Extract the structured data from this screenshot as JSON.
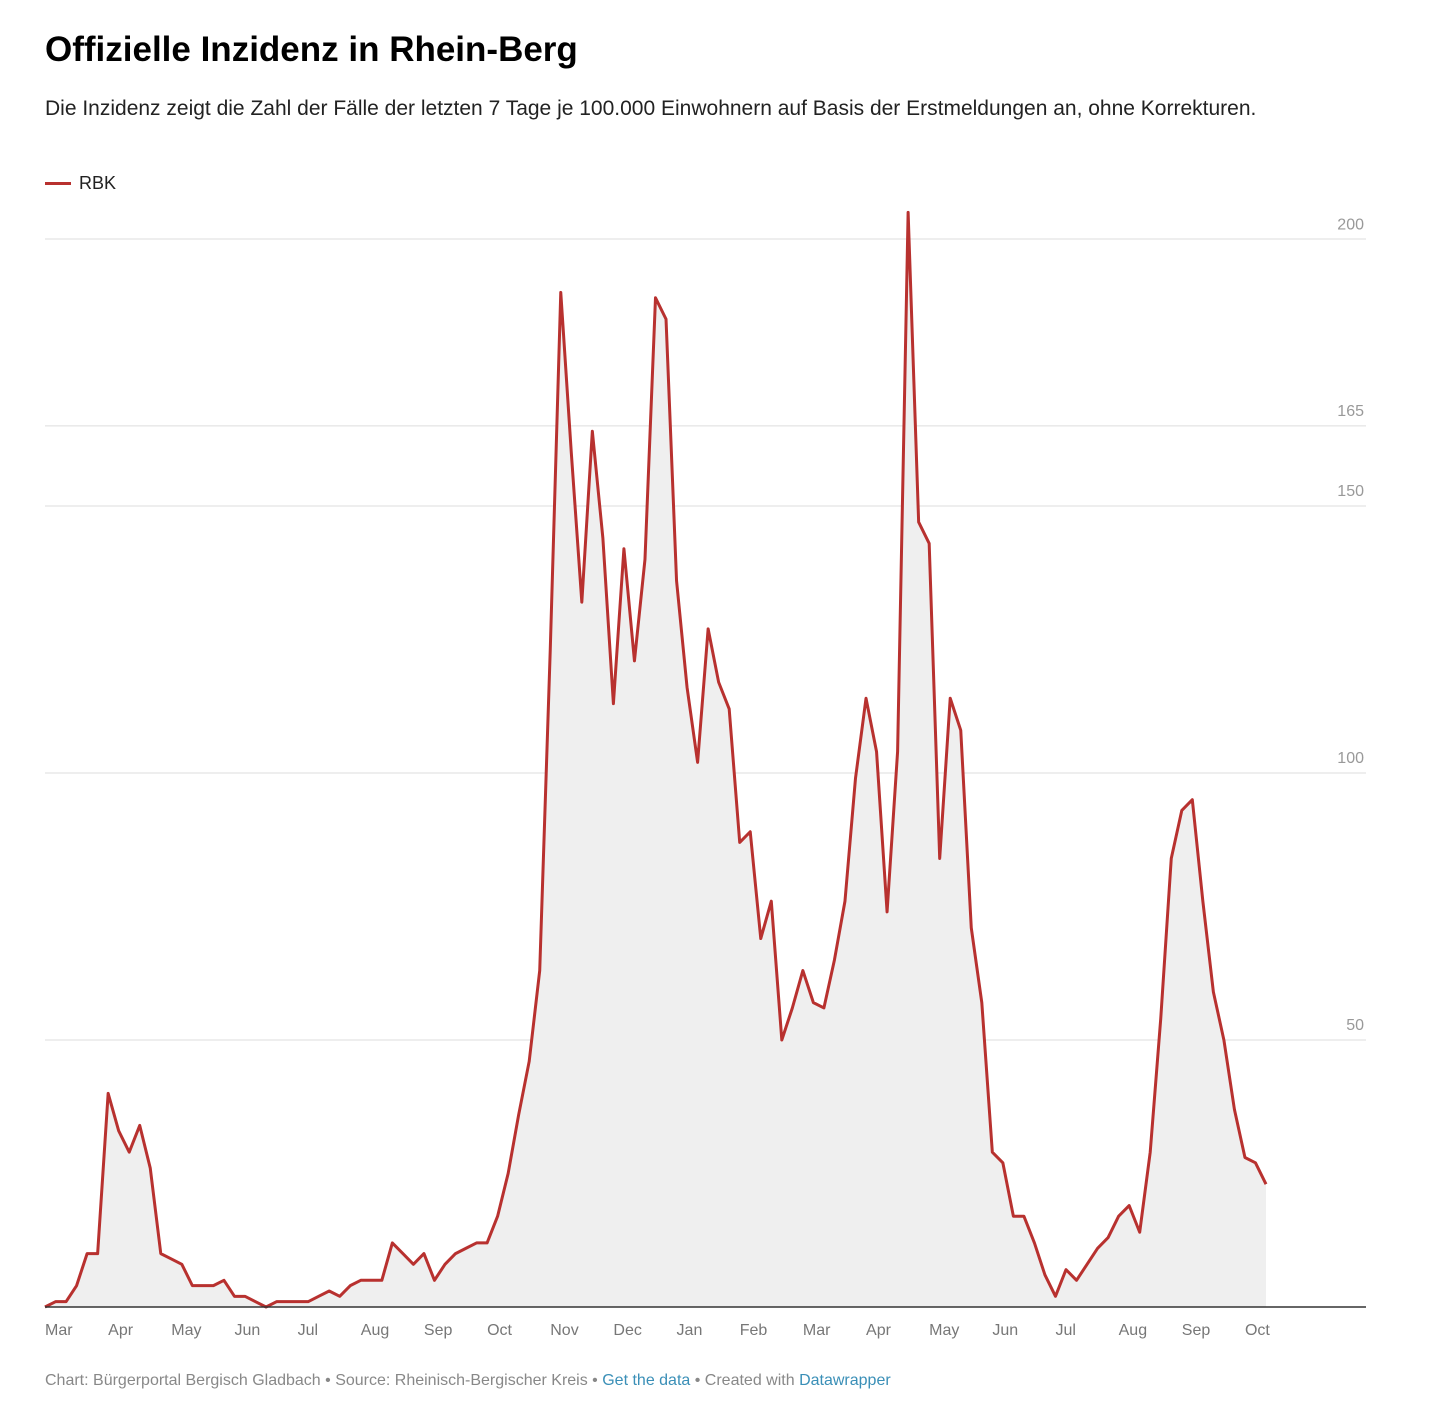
{
  "chart_data": {
    "type": "line",
    "title": "Offizielle Inzidenz in Rhein-Berg",
    "subtitle": "Die Inzidenz zeigt die Zahl der Fälle der letzten 7 Tage je 100.000 Einwohnern auf Basis der Erstmeldungen an, ohne Korrekturen.",
    "categories": [
      "Mar",
      null,
      null,
      null,
      null,
      null,
      "Apr",
      null,
      null,
      null,
      null,
      null,
      "May",
      null,
      null,
      null,
      null,
      null,
      "Jun",
      null,
      null,
      null,
      null,
      null,
      "Jul",
      null,
      null,
      null,
      null,
      null,
      "Aug",
      null,
      null,
      null,
      null,
      null,
      "Sep",
      null,
      null,
      null,
      null,
      null,
      "Oct",
      null,
      null,
      null,
      null,
      null,
      "Nov",
      null,
      null,
      null,
      null,
      null,
      "Dec",
      null,
      null,
      null,
      null,
      null,
      "Jan",
      null,
      null,
      null,
      null,
      null,
      "Feb",
      null,
      null,
      null,
      null,
      null,
      "Mar",
      null,
      null,
      null,
      null,
      null,
      "Apr",
      null,
      null,
      null,
      null,
      null,
      "May",
      null,
      null,
      null,
      null,
      null,
      "Jun",
      null,
      null,
      null,
      null,
      null,
      "Jul",
      null,
      null,
      null,
      null,
      null,
      "Aug",
      null,
      null,
      null,
      null,
      null,
      "Sep",
      null,
      null,
      null,
      null,
      null,
      "Oct",
      null,
      null
    ],
    "series": [
      {
        "name": "RBK",
        "color": "#b8312f",
        "values": [
          0,
          1,
          1,
          4,
          10,
          10,
          40,
          33,
          29,
          34,
          26,
          10,
          9,
          8,
          4,
          4,
          4,
          5,
          2,
          2,
          1,
          0,
          1,
          1,
          1,
          1,
          2,
          3,
          2,
          4,
          5,
          5,
          5,
          12,
          10,
          8,
          10,
          5,
          8,
          10,
          11,
          12,
          12,
          17,
          25,
          36,
          46,
          63,
          123,
          190,
          160,
          132,
          164,
          144,
          113,
          142,
          121,
          140,
          189,
          185,
          136,
          116,
          102,
          127,
          117,
          112,
          87,
          89,
          69,
          76,
          50,
          56,
          63,
          57,
          56,
          65,
          76,
          99,
          114,
          104,
          74,
          104,
          205,
          147,
          143,
          84,
          114,
          108,
          71,
          57,
          29,
          27,
          17,
          17,
          12,
          6,
          2,
          7,
          5,
          8,
          11,
          13,
          17,
          19,
          14,
          29,
          54,
          84,
          93,
          95,
          76,
          59,
          50,
          37,
          28,
          27,
          23
        ]
      }
    ],
    "ylim": [
      0,
      206
    ],
    "yticks": [
      50,
      100,
      150,
      165,
      200
    ],
    "grid": true,
    "legend": "top-left",
    "area_color": "#efefef",
    "footer": {
      "prefix": "Chart: Bürgerportal Bergisch Gladbach • Source: Rheinisch-Bergischer Kreis • ",
      "link1": "Get the data",
      "middle": " • Created with ",
      "link2": "Datawrapper"
    }
  }
}
